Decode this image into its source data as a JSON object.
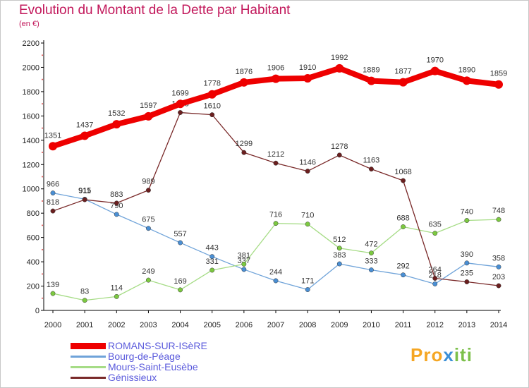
{
  "title": "Evolution du Montant de la Dette par Habitant",
  "unit_label": "(en €)",
  "logo": {
    "p1": "Pro",
    "p2": "x",
    "p3": "iti"
  },
  "chart_data": {
    "type": "line",
    "x": [
      2000,
      2001,
      2002,
      2003,
      2004,
      2005,
      2006,
      2007,
      2008,
      2009,
      2010,
      2011,
      2012,
      2013,
      2014
    ],
    "ylim": [
      0,
      2200
    ],
    "yticks": [
      0,
      200,
      400,
      600,
      800,
      1000,
      1200,
      1400,
      1600,
      1800,
      2000,
      2200
    ],
    "grid": false,
    "legend_position": "bottom",
    "series": [
      {
        "name": "Bourg-de-Péage",
        "color": "#6fa3d9",
        "marker": "#4a8fd4",
        "values": [
          966,
          915,
          790,
          675,
          557,
          443,
          337,
          244,
          171,
          383,
          333,
          292,
          218,
          390,
          358
        ],
        "labels": [
          "966",
          "915",
          "790",
          "675",
          "557",
          "443",
          "337",
          "244",
          "171",
          "383",
          "333",
          "292",
          "218",
          "390",
          "358"
        ]
      },
      {
        "name": "Mours-Saint-Eusèbe",
        "color": "#a6dc86",
        "marker": "#7cc940",
        "values": [
          139,
          83,
          114,
          249,
          169,
          331,
          381,
          716,
          710,
          512,
          472,
          688,
          635,
          740,
          748
        ],
        "labels": [
          "139",
          "83",
          "114",
          "249",
          "169",
          "331",
          "381",
          "716",
          "710",
          "512",
          "472",
          "688",
          "635",
          "740",
          "748"
        ]
      },
      {
        "name": "Génissieux",
        "color": "#7a2a2a",
        "marker": "#6b1f1f",
        "values": [
          818,
          911,
          883,
          989,
          1628,
          1610,
          1299,
          1212,
          1146,
          1278,
          1163,
          1068,
          264,
          235,
          203
        ],
        "labels": [
          "818",
          "911",
          "883",
          "989",
          "1628",
          "1610",
          "1299",
          "1212",
          "1146",
          "1278",
          "1163",
          "1068",
          "264",
          "235",
          "203"
        ]
      },
      {
        "name": "ROMANS-SUR-ISèRE",
        "color": "#ee0000",
        "marker": "#ee0000",
        "values": [
          1351,
          1437,
          1532,
          1597,
          1699,
          1778,
          1876,
          1906,
          1910,
          1992,
          1889,
          1877,
          1970,
          1890,
          1859
        ],
        "labels": [
          "1351",
          "1437",
          "1532",
          "1597",
          "1699",
          "1778",
          "1876",
          "1906",
          "1910",
          "1992",
          "1889",
          "1877",
          "1970",
          "1890",
          "1859"
        ]
      }
    ],
    "legend": [
      {
        "name": "ROMANS-SUR-ISèRE",
        "color": "#ee0000"
      },
      {
        "name": "Bourg-de-Péage",
        "color": "#6fa3d9"
      },
      {
        "name": "Mours-Saint-Eusèbe",
        "color": "#a6dc86"
      },
      {
        "name": "Génissieux",
        "color": "#7a2a2a"
      }
    ]
  }
}
